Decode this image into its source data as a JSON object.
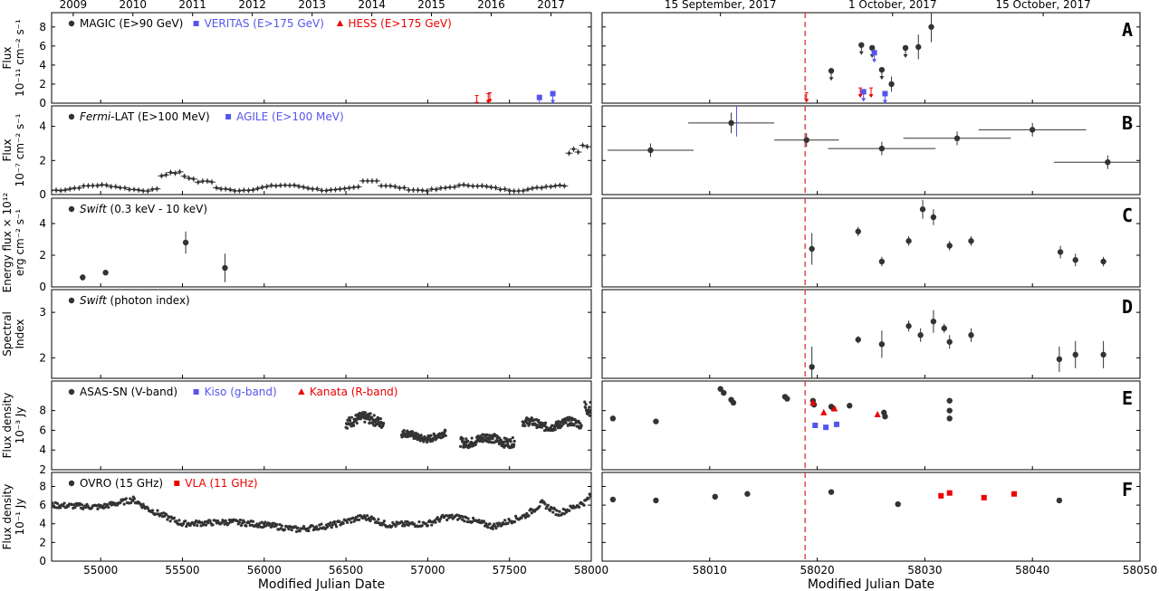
{
  "chart_data": {
    "type": "scatter",
    "xlabel_left": "Modified Julian Date",
    "xlabel_right": "Modified Julian Date",
    "left_xlim": [
      54700,
      58000
    ],
    "right_xlim": [
      58000,
      58050
    ],
    "left_xticks": [
      "55000",
      "55500",
      "56000",
      "56500",
      "57000",
      "57500",
      "58000"
    ],
    "right_xticks": [
      "58010",
      "58020",
      "58030",
      "58040",
      "58050"
    ],
    "top_years": [
      {
        "label": "2009",
        "mjd": 54832
      },
      {
        "label": "2010",
        "mjd": 55197
      },
      {
        "label": "2011",
        "mjd": 55562
      },
      {
        "label": "2012",
        "mjd": 55927
      },
      {
        "label": "2013",
        "mjd": 56293
      },
      {
        "label": "2014",
        "mjd": 56658
      },
      {
        "label": "2015",
        "mjd": 57023
      },
      {
        "label": "2016",
        "mjd": 57388
      },
      {
        "label": "2017",
        "mjd": 57754
      }
    ],
    "top_dates": [
      {
        "label": "15 September, 2017",
        "mjd": 58011
      },
      {
        "label": "1 October, 2017",
        "mjd": 58027
      },
      {
        "label": "15 October, 2017",
        "mjd": 58041
      }
    ],
    "neutrino_mjd": 58018.87,
    "colors": {
      "black": "#333333",
      "blue": "#5555ee",
      "red": "#ee0000",
      "vline": "#dd3333"
    },
    "panels": [
      {
        "letter": "A",
        "ylabel": [
          "Flux",
          "10⁻¹¹ cm⁻² s⁻¹"
        ],
        "ylim": [
          0,
          9.5
        ],
        "yticks": [
          "0",
          "2",
          "4",
          "6",
          "8"
        ],
        "legend": [
          {
            "marker": "circle",
            "color": "black",
            "text": "MAGIC (E>90 GeV)"
          },
          {
            "marker": "square",
            "color": "blue",
            "text": "VERITAS (E>175 GeV)"
          },
          {
            "marker": "triangle",
            "color": "red",
            "text": "HESS (E>175 GeV)"
          }
        ],
        "series": [
          {
            "name": "MAGIC (E>90 GeV)",
            "color": "black",
            "marker": "circle",
            "points": [
              {
                "x": 58021.3,
                "y": 3.4,
                "ul": true
              },
              {
                "x": 58024.1,
                "y": 6.1,
                "ul": true
              },
              {
                "x": 58025.1,
                "y": 5.8,
                "ul": true
              },
              {
                "x": 58026.0,
                "y": 3.5,
                "ul": true
              },
              {
                "x": 58026.9,
                "y": 2.0,
                "err": 0.8
              },
              {
                "x": 58028.2,
                "y": 5.8,
                "ul": true
              },
              {
                "x": 58029.4,
                "y": 5.9,
                "err": 1.3
              },
              {
                "x": 58030.6,
                "y": 8.0,
                "err": 1.6
              }
            ]
          },
          {
            "name": "VERITAS (E>175 GeV)",
            "color": "blue",
            "marker": "square",
            "points": [
              {
                "x": 57683,
                "y": 0.6,
                "ul": true
              },
              {
                "x": 57765,
                "y": 1.0,
                "ul": true
              },
              {
                "x": 58024.3,
                "y": 1.2,
                "ul": true
              },
              {
                "x": 58025.3,
                "y": 5.3,
                "ul": true
              },
              {
                "x": 58026.3,
                "y": 1.0,
                "ul": true
              }
            ]
          },
          {
            "name": "HESS (E>175 GeV)",
            "color": "red",
            "marker": "triangle",
            "points": [
              {
                "x": 57300,
                "y": 0.8,
                "ul": true
              },
              {
                "x": 57370,
                "y": 1.0,
                "ul": true
              },
              {
                "x": 57380,
                "y": 1.1,
                "ul": true
              },
              {
                "x": 58019.0,
                "y": 1.1,
                "ul": true
              },
              {
                "x": 58024.0,
                "y": 1.6,
                "ul": true
              },
              {
                "x": 58025.0,
                "y": 1.6,
                "ul": true
              }
            ]
          }
        ]
      },
      {
        "letter": "B",
        "ylabel": [
          "Flux",
          "10⁻⁷ cm⁻² s⁻¹"
        ],
        "ylim": [
          0,
          5.2
        ],
        "yticks": [
          "0",
          "2",
          "4"
        ],
        "legend": [
          {
            "marker": "circle",
            "color": "black",
            "text": "Fermi-LAT (E>100 MeV)",
            "italic": "Fermi"
          },
          {
            "marker": "square",
            "color": "blue",
            "text": "AGILE (E>100 MeV)"
          }
        ],
        "series": [
          {
            "name": "Fermi-LAT (E>100 MeV)",
            "color": "black",
            "marker": "circle",
            "points": [
              {
                "x": 58004.5,
                "y": 2.6,
                "err": 0.4,
                "xerr": 4
              },
              {
                "x": 58012,
                "y": 4.2,
                "err": 0.6,
                "xerr": 4
              },
              {
                "x": 58019,
                "y": 3.2,
                "err": 0.4,
                "xerr": 3
              },
              {
                "x": 58026,
                "y": 2.7,
                "err": 0.4,
                "xerr": 5
              },
              {
                "x": 58033,
                "y": 3.3,
                "err": 0.4,
                "xerr": 5
              },
              {
                "x": 58040,
                "y": 3.8,
                "err": 0.4,
                "xerr": 5
              },
              {
                "x": 58047,
                "y": 1.9,
                "err": 0.4,
                "xerr": 5
              }
            ]
          },
          {
            "name": "AGILE (E>100 MeV)",
            "color": "blue",
            "marker": "square",
            "points": [
              {
                "x": 58012.5,
                "y": 5.4,
                "err": 2.0,
                "xerr": 6.5
              }
            ]
          }
        ],
        "fermi_long_term": {
          "start": 54700,
          "end": 58000,
          "step": 28
        }
      },
      {
        "letter": "C",
        "ylabel": [
          "Energy flux × 10¹²",
          "erg cm⁻² s⁻¹"
        ],
        "ylim": [
          0,
          5.6
        ],
        "yticks": [
          "0",
          "2",
          "4"
        ],
        "legend": [
          {
            "marker": "circle",
            "color": "black",
            "text": "Swift (0.3 keV - 10 keV)",
            "italic": "Swift"
          }
        ],
        "series": [
          {
            "name": "Swift (0.3 keV - 10 keV)",
            "color": "black",
            "marker": "circle",
            "points": [
              {
                "x": 54890,
                "y": 0.6,
                "err": 0.2
              },
              {
                "x": 55030,
                "y": 0.9,
                "err": 0.15
              },
              {
                "x": 55520,
                "y": 2.8,
                "err": 0.7
              },
              {
                "x": 55760,
                "y": 1.2,
                "err": 0.9
              },
              {
                "x": 58019.5,
                "y": 2.4,
                "err": 1.0
              },
              {
                "x": 58023.8,
                "y": 3.5,
                "err": 0.3
              },
              {
                "x": 58026,
                "y": 1.6,
                "err": 0.3
              },
              {
                "x": 58028.5,
                "y": 2.9,
                "err": 0.3
              },
              {
                "x": 58029.8,
                "y": 4.9,
                "err": 0.6
              },
              {
                "x": 58030.8,
                "y": 4.4,
                "err": 0.5
              },
              {
                "x": 58032.3,
                "y": 2.6,
                "err": 0.3
              },
              {
                "x": 58034.3,
                "y": 2.9,
                "err": 0.3
              },
              {
                "x": 58042.6,
                "y": 2.2,
                "err": 0.4
              },
              {
                "x": 58044,
                "y": 1.7,
                "err": 0.4
              },
              {
                "x": 58046.6,
                "y": 1.6,
                "err": 0.3
              }
            ]
          }
        ]
      },
      {
        "letter": "D",
        "ylabel": [
          "Spectral",
          "Index"
        ],
        "ylim": [
          1.55,
          3.5
        ],
        "yticks": [
          "2",
          "3"
        ],
        "legend": [
          {
            "marker": "circle",
            "color": "black",
            "text": "Swift (photon index)",
            "italic": "Swift"
          }
        ],
        "series": [
          {
            "name": "Swift (photon index)",
            "color": "black",
            "marker": "circle",
            "points": [
              {
                "x": 58019.5,
                "y": 1.8,
                "err": 0.45
              },
              {
                "x": 58023.8,
                "y": 2.4,
                "err": 0.08
              },
              {
                "x": 58026,
                "y": 2.3,
                "err": 0.3
              },
              {
                "x": 58028.5,
                "y": 2.7,
                "err": 0.12
              },
              {
                "x": 58029.6,
                "y": 2.5,
                "err": 0.15
              },
              {
                "x": 58030.8,
                "y": 2.8,
                "err": 0.25
              },
              {
                "x": 58031.8,
                "y": 2.65,
                "err": 0.1
              },
              {
                "x": 58032.3,
                "y": 2.35,
                "err": 0.15
              },
              {
                "x": 58034.3,
                "y": 2.5,
                "err": 0.15
              },
              {
                "x": 58042.5,
                "y": 1.97,
                "err": 0.28
              },
              {
                "x": 58044,
                "y": 2.07,
                "err": 0.3
              },
              {
                "x": 58046.6,
                "y": 2.07,
                "err": 0.3
              }
            ]
          }
        ]
      },
      {
        "letter": "E",
        "ylabel": [
          "Flux density",
          "10⁻³ Jy"
        ],
        "ylim": [
          2,
          11
        ],
        "yticks": [
          "2",
          "4",
          "6",
          "8"
        ],
        "legend": [
          {
            "marker": "circle",
            "color": "black",
            "text": "ASAS-SN (V-band)"
          },
          {
            "marker": "square",
            "color": "blue",
            "text": "Kiso (g-band)"
          },
          {
            "marker": "triangle",
            "color": "red",
            "text": "Kanata (R-band)"
          }
        ],
        "series": [
          {
            "name": "ASAS-SN (V-band)",
            "color": "black",
            "marker": "circle",
            "points": [
              {
                "x": 58001,
                "y": 7.2
              },
              {
                "x": 58005,
                "y": 6.9
              },
              {
                "x": 58011,
                "y": 10.2
              },
              {
                "x": 58011.3,
                "y": 9.8
              },
              {
                "x": 58012,
                "y": 9.1
              },
              {
                "x": 58012.2,
                "y": 8.8
              },
              {
                "x": 58017,
                "y": 9.4
              },
              {
                "x": 58017.2,
                "y": 9.2
              },
              {
                "x": 58019.6,
                "y": 9.0
              },
              {
                "x": 58019.7,
                "y": 8.6
              },
              {
                "x": 58021.3,
                "y": 8.4
              },
              {
                "x": 58021.5,
                "y": 8.2
              },
              {
                "x": 58023,
                "y": 8.5
              },
              {
                "x": 58026.2,
                "y": 7.8
              },
              {
                "x": 58026.3,
                "y": 7.4
              },
              {
                "x": 58032.3,
                "y": 9.0
              },
              {
                "x": 58032.3,
                "y": 8.0
              },
              {
                "x": 58032.3,
                "y": 7.2
              }
            ]
          },
          {
            "name": "Kiso (g-band)",
            "color": "blue",
            "marker": "square",
            "points": [
              {
                "x": 58019.8,
                "y": 6.5
              },
              {
                "x": 58020.8,
                "y": 6.3
              },
              {
                "x": 58021.8,
                "y": 6.6
              }
            ]
          },
          {
            "name": "Kanata (R-band)",
            "color": "red",
            "marker": "triangle",
            "points": [
              {
                "x": 58019.6,
                "y": 8.8
              },
              {
                "x": 58020.6,
                "y": 7.8
              },
              {
                "x": 58021.6,
                "y": 8.2
              },
              {
                "x": 58025.6,
                "y": 7.6
              }
            ]
          }
        ],
        "asassn_long_term": [
          {
            "start": 56500,
            "end": 56730,
            "mean": 7.0,
            "amp": 0.9
          },
          {
            "start": 56840,
            "end": 57110,
            "mean": 5.4,
            "amp": 0.6
          },
          {
            "start": 57200,
            "end": 57530,
            "mean": 5.0,
            "amp": 0.8
          },
          {
            "start": 57580,
            "end": 57940,
            "mean": 6.6,
            "amp": 0.7
          },
          {
            "start": 57960,
            "end": 58000,
            "mean": 8.5,
            "amp": 1.2
          }
        ]
      },
      {
        "letter": "F",
        "ylabel": [
          "Flux density",
          "10⁻¹ Jy"
        ],
        "ylim": [
          0,
          9.5
        ],
        "yticks": [
          "0",
          "2",
          "4",
          "6",
          "8"
        ],
        "legend": [
          {
            "marker": "circle",
            "color": "black",
            "text": "OVRO (15 GHz)"
          },
          {
            "marker": "square",
            "color": "red",
            "text": "VLA (11 GHz)"
          }
        ],
        "series": [
          {
            "name": "OVRO (15 GHz)",
            "color": "black",
            "marker": "circle",
            "points": [
              {
                "x": 58001,
                "y": 6.6
              },
              {
                "x": 58005,
                "y": 6.5
              },
              {
                "x": 58010.5,
                "y": 6.9
              },
              {
                "x": 58013.5,
                "y": 7.2
              },
              {
                "x": 58021.3,
                "y": 7.4
              },
              {
                "x": 58027.5,
                "y": 6.1
              },
              {
                "x": 58042.5,
                "y": 6.5
              }
            ]
          },
          {
            "name": "VLA (11 GHz)",
            "color": "red",
            "marker": "square",
            "points": [
              {
                "x": 58031.5,
                "y": 7.0
              },
              {
                "x": 58032.3,
                "y": 7.3
              },
              {
                "x": 58035.5,
                "y": 6.8
              },
              {
                "x": 58038.3,
                "y": 7.2
              }
            ]
          }
        ],
        "ovro_long_term": [
          {
            "x": 54700,
            "y": 6.0
          },
          {
            "x": 55000,
            "y": 5.8
          },
          {
            "x": 55200,
            "y": 6.6
          },
          {
            "x": 55300,
            "y": 5.5
          },
          {
            "x": 55500,
            "y": 4.0
          },
          {
            "x": 55800,
            "y": 4.2
          },
          {
            "x": 56000,
            "y": 3.9
          },
          {
            "x": 56200,
            "y": 3.4
          },
          {
            "x": 56400,
            "y": 3.8
          },
          {
            "x": 56600,
            "y": 4.7
          },
          {
            "x": 56650,
            "y": 4.6
          },
          {
            "x": 56750,
            "y": 3.9
          },
          {
            "x": 57000,
            "y": 4.0
          },
          {
            "x": 57100,
            "y": 4.7
          },
          {
            "x": 57200,
            "y": 4.7
          },
          {
            "x": 57400,
            "y": 3.7
          },
          {
            "x": 57600,
            "y": 4.9
          },
          {
            "x": 57700,
            "y": 6.2
          },
          {
            "x": 57800,
            "y": 5.1
          },
          {
            "x": 57960,
            "y": 6.3
          },
          {
            "x": 58000,
            "y": 7.1
          }
        ]
      }
    ]
  }
}
